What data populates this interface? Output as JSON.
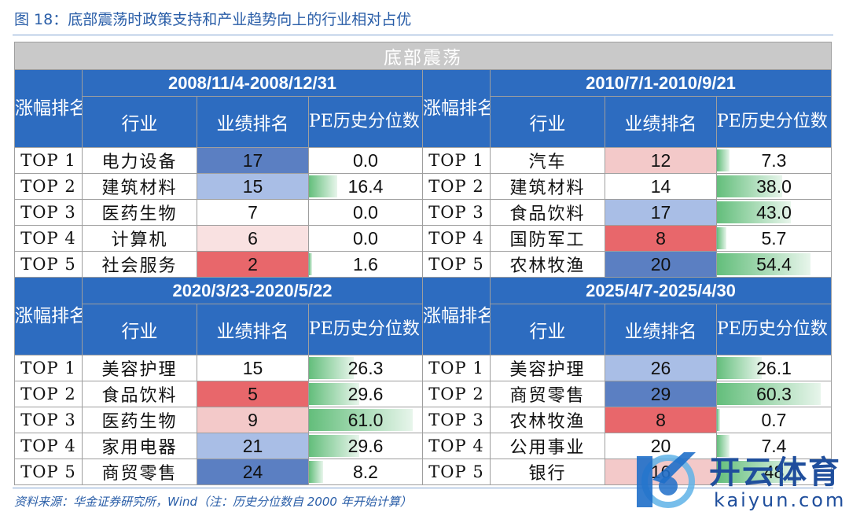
{
  "figure_title": "图 18：底部震荡时政策支持和产业趋势向上的行业相对占优",
  "banner": "底部震荡",
  "headers": {
    "rank": "涨幅排名",
    "industry": "行业",
    "performance_rank": "业绩排名",
    "pe_percentile": "PE历史分位数（%）"
  },
  "colors": {
    "header_blue": "#2d6cc0",
    "banner_gray": "#c9c9c9",
    "heat_dark_blue": "#5b7fc2",
    "heat_light_blue": "#a9bee6",
    "heat_red": "#e8676b",
    "heat_pink": "#f3c9c9",
    "databar_green": "#63be7b",
    "caption_blue": "#2a5ea8"
  },
  "periods": [
    {
      "label": "2008/11/4-2008/12/31",
      "rows": [
        {
          "rank": "TOP 1",
          "industry": "电力设备",
          "perf": "17",
          "pe": "0.0"
        },
        {
          "rank": "TOP 2",
          "industry": "建筑材料",
          "perf": "15",
          "pe": "16.4"
        },
        {
          "rank": "TOP 3",
          "industry": "医药生物",
          "perf": "7",
          "pe": "0.0"
        },
        {
          "rank": "TOP 4",
          "industry": "计算机",
          "perf": "6",
          "pe": "0.0"
        },
        {
          "rank": "TOP 5",
          "industry": "社会服务",
          "perf": "2",
          "pe": "1.6"
        }
      ]
    },
    {
      "label": "2010/7/1-2010/9/21",
      "rows": [
        {
          "rank": "TOP 1",
          "industry": "汽车",
          "perf": "12",
          "pe": "7.3"
        },
        {
          "rank": "TOP 2",
          "industry": "建筑材料",
          "perf": "14",
          "pe": "38.0"
        },
        {
          "rank": "TOP 3",
          "industry": "食品饮料",
          "perf": "17",
          "pe": "43.0"
        },
        {
          "rank": "TOP 4",
          "industry": "国防军工",
          "perf": "8",
          "pe": "5.7"
        },
        {
          "rank": "TOP 5",
          "industry": "农林牧渔",
          "perf": "20",
          "pe": "54.4"
        }
      ]
    },
    {
      "label": "2020/3/23-2020/5/22",
      "rows": [
        {
          "rank": "TOP 1",
          "industry": "美容护理",
          "perf": "15",
          "pe": "26.3"
        },
        {
          "rank": "TOP 2",
          "industry": "食品饮料",
          "perf": "5",
          "pe": "29.6"
        },
        {
          "rank": "TOP 3",
          "industry": "医药生物",
          "perf": "9",
          "pe": "61.0"
        },
        {
          "rank": "TOP 4",
          "industry": "家用电器",
          "perf": "21",
          "pe": "29.6"
        },
        {
          "rank": "TOP 5",
          "industry": "商贸零售",
          "perf": "24",
          "pe": "8.2"
        }
      ]
    },
    {
      "label": "2025/4/7-2025/4/30",
      "rows": [
        {
          "rank": "TOP 1",
          "industry": "美容护理",
          "perf": "26",
          "pe": "26.1"
        },
        {
          "rank": "TOP 2",
          "industry": "商贸零售",
          "perf": "29",
          "pe": "60.3"
        },
        {
          "rank": "TOP 3",
          "industry": "农林牧渔",
          "perf": "8",
          "pe": "0.7"
        },
        {
          "rank": "TOP 4",
          "industry": "公用事业",
          "perf": "20",
          "pe": "7.4"
        },
        {
          "rank": "TOP 5",
          "industry": "银行",
          "perf": "16",
          "pe": "48"
        }
      ]
    }
  ],
  "source_note": "资料来源：华金证券研究所，Wind（注：历史分位数自 2000 年开始计算）",
  "watermark": {
    "brand": "开云体育",
    "domain": "kaiyun.com",
    "icon": "kaiyun-logo-icon"
  }
}
